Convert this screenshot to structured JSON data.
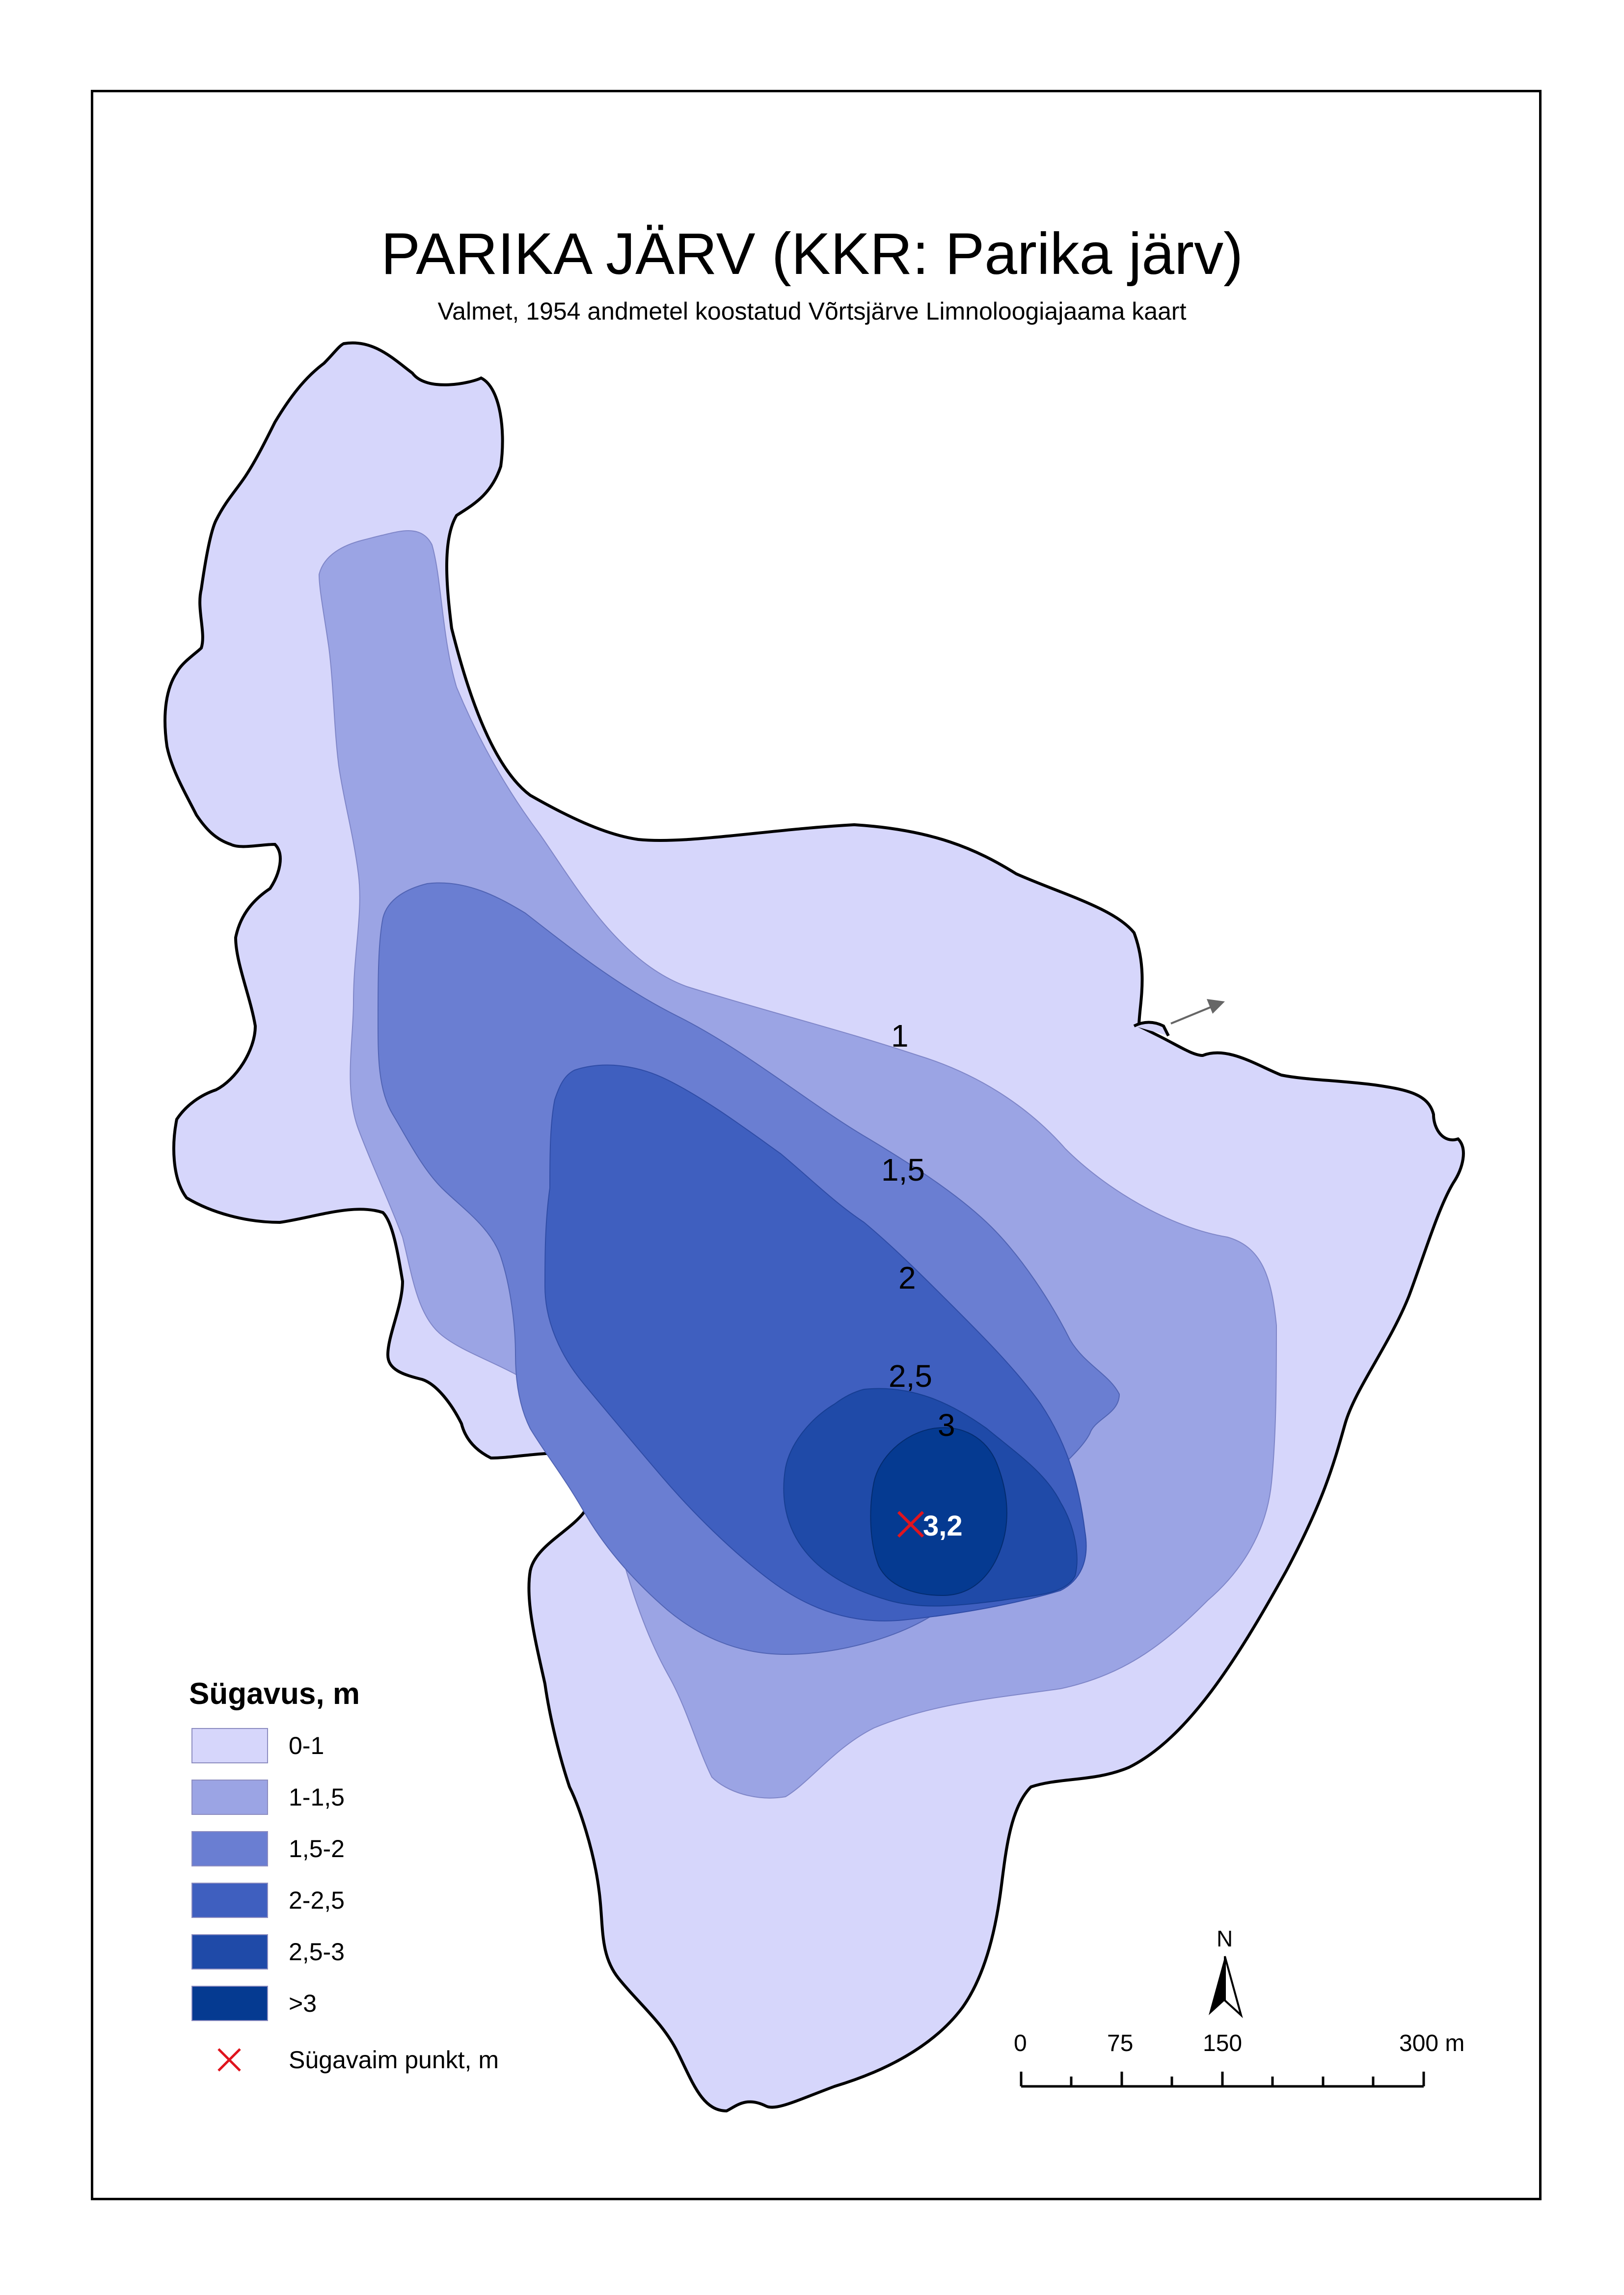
{
  "title": "PARIKA JÄRV (KKR: Parika järv)",
  "subtitle": "Valmet, 1954 andmetel koostatud Võrtsjärve Limnoloogiajaama kaart",
  "contour_labels": [
    "1",
    "1,5",
    "2",
    "2,5",
    "3"
  ],
  "deepest_point": {
    "label": "3,2",
    "depth_m": 3.2
  },
  "legend": {
    "title": "Sügavus, m",
    "classes": [
      {
        "label": "0-1",
        "color": "#d6d6fb"
      },
      {
        "label": "1-1,5",
        "color": "#9ba4e4"
      },
      {
        "label": "1,5-2",
        "color": "#6a7ed2"
      },
      {
        "label": "2-2,5",
        "color": "#3f5fbf"
      },
      {
        "label": "2,5-3",
        "color": "#1f4aa8"
      },
      {
        "label": ">3",
        "color": "#053a91"
      }
    ],
    "deepest_label": "Sügavaim punkt, m",
    "deepest_symbol_color": "#e0141e"
  },
  "north_arrow": {
    "label": "N",
    "icon": "north-arrow-icon"
  },
  "scale_bar": {
    "ticks": [
      "0",
      "75",
      "150",
      "300 m"
    ]
  },
  "outflow_icon": "arrow-icon"
}
